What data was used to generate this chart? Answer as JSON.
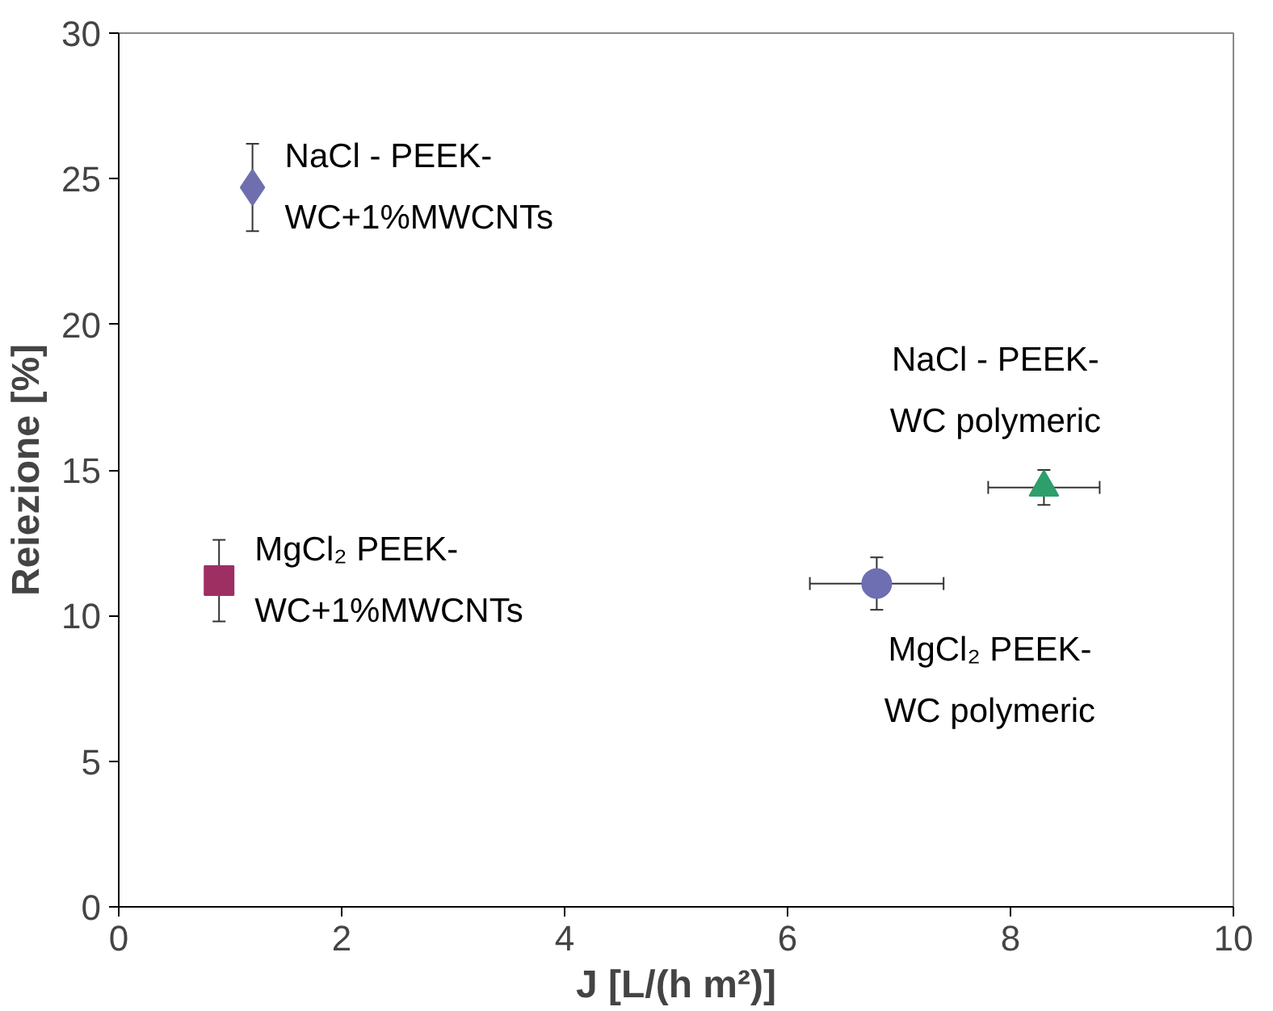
{
  "chart_data": {
    "type": "scatter",
    "xlabel": "J [L/(h m²)]",
    "ylabel": "Reiezione [%]",
    "xlim": [
      0,
      10
    ],
    "xticks": [
      0,
      2,
      4,
      6,
      8,
      10
    ],
    "ylim": [
      0,
      30
    ],
    "yticks": [
      0,
      5,
      10,
      15,
      20,
      25,
      30
    ],
    "grid": false,
    "series": [
      {
        "name": "NaCl - PEEK-WC+1%MWCNTs",
        "color": "#6f6fb0",
        "marker": "diamond",
        "x": [
          1.2
        ],
        "values": [
          24.7
        ],
        "errors": [
          1.5
        ]
      },
      {
        "name": "MgCl₂ PEEK-WC+1%MWCNTs",
        "color": "#9e2f63",
        "marker": "square",
        "x": [
          0.9
        ],
        "values": [
          11.2
        ],
        "errors": [
          1.4
        ]
      },
      {
        "name": "NaCl - PEEK-WC polymeric",
        "color": "#2e9e6b",
        "marker": "triangle",
        "x": [
          8.3
        ],
        "values": [
          14.4
        ],
        "errors": [
          0.6
        ],
        "xerrors": [
          0.5
        ]
      },
      {
        "name": "MgCl₂ PEEK-WC polymeric",
        "color": "#6e6eb3",
        "marker": "circle",
        "x": [
          6.8
        ],
        "values": [
          11.1
        ],
        "errors": [
          0.9
        ],
        "xerrors": [
          0.6
        ]
      }
    ]
  }
}
